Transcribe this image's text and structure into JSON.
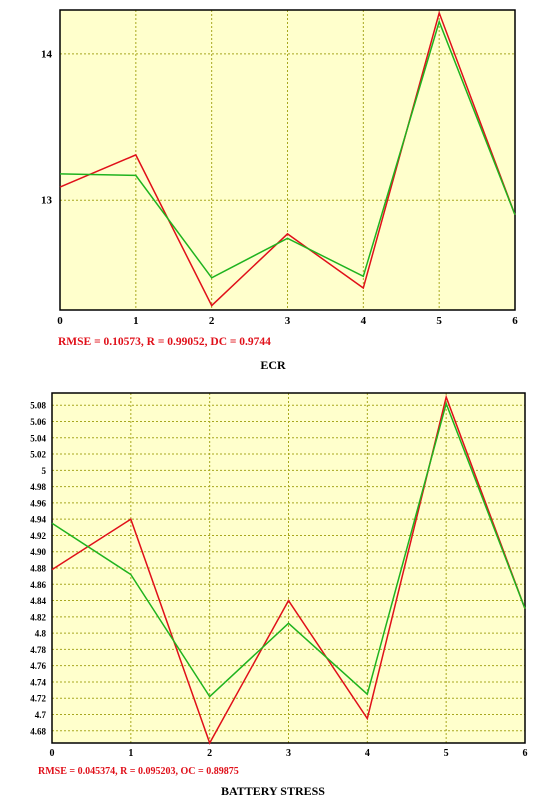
{
  "chart_data": [
    {
      "type": "line",
      "title": "ECR",
      "metrics": "RMSE = 0.10573, R = 0.99052, DC = 0.9744",
      "x": [
        0,
        1,
        2,
        3,
        4,
        5,
        6
      ],
      "xlim": [
        0,
        6
      ],
      "ylim": [
        12.25,
        14.3
      ],
      "x_tick_labels": [
        "0",
        "1",
        "2",
        "3",
        "4",
        "5",
        "6"
      ],
      "y_ticks": [
        13,
        14
      ],
      "y_tick_labels": [
        "13",
        "14"
      ],
      "grid": true,
      "series": [
        {
          "color": "#e0101a",
          "values": [
            13.09,
            13.31,
            12.28,
            12.77,
            12.4,
            14.28,
            12.9
          ]
        },
        {
          "color": "#1fb31f",
          "values": [
            13.18,
            13.17,
            12.47,
            12.74,
            12.48,
            14.22,
            12.9
          ]
        }
      ]
    },
    {
      "type": "line",
      "title": "BATTERY STRESS",
      "metrics": "RMSE = 0.045374, R = 0.095203, OC = 0.89875",
      "x": [
        0,
        1,
        2,
        3,
        4,
        5,
        6
      ],
      "xlim": [
        0,
        6
      ],
      "ylim": [
        4.665,
        5.095
      ],
      "x_tick_labels": [
        "0",
        "1",
        "2",
        "3",
        "4",
        "5",
        "6"
      ],
      "y_ticks": [
        4.68,
        4.7,
        4.72,
        4.74,
        4.76,
        4.78,
        4.8,
        4.82,
        4.84,
        4.86,
        4.88,
        4.9,
        4.92,
        4.94,
        4.96,
        4.98,
        5.0,
        5.02,
        5.04,
        5.06,
        5.08
      ],
      "y_tick_labels": [
        "4.68",
        "4.7",
        "4.72",
        "4.74",
        "4.76",
        "4.78",
        "4.8",
        "4.82",
        "4.84",
        "4.86",
        "4.88",
        "4.90",
        "4.92",
        "4.94",
        "4.96",
        "4.98",
        "5",
        "5.02",
        "5.04",
        "5.06",
        "5.08"
      ],
      "grid": true,
      "series": [
        {
          "color": "#e0101a",
          "values": [
            4.878,
            4.94,
            4.665,
            4.84,
            4.695,
            5.09,
            4.83
          ]
        },
        {
          "color": "#1fb31f",
          "values": [
            4.935,
            4.872,
            4.722,
            4.812,
            4.725,
            5.082,
            4.83
          ]
        }
      ]
    }
  ]
}
